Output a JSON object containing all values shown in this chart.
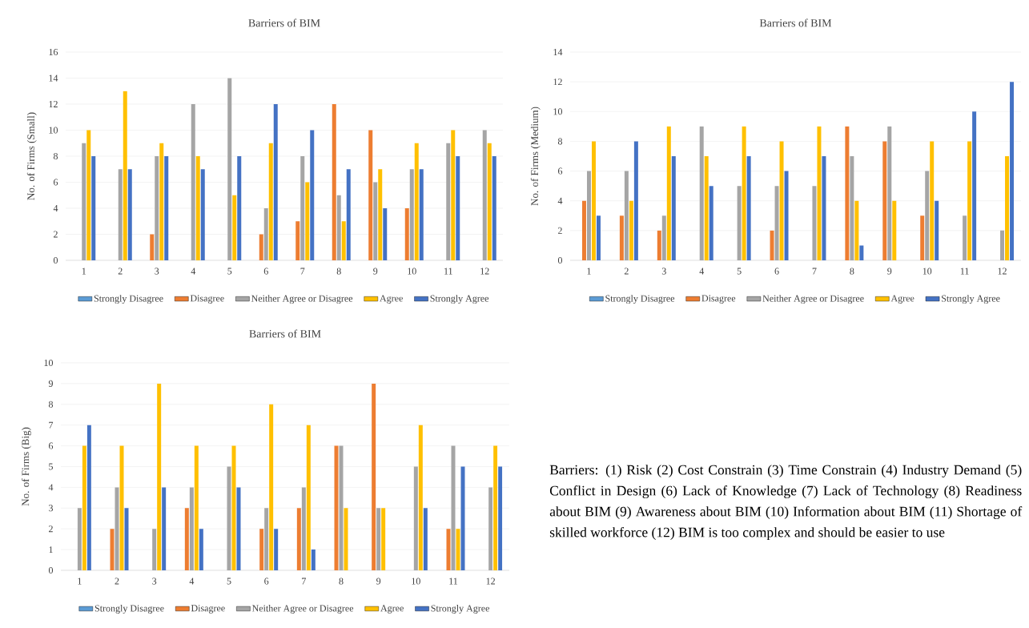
{
  "chart_data": [
    {
      "type": "bar",
      "title": "Barriers of BIM",
      "ylabel": "No. of Firms (Small)",
      "categories": [
        "1",
        "2",
        "3",
        "4",
        "5",
        "6",
        "7",
        "8",
        "9",
        "10",
        "11",
        "12"
      ],
      "ylim": [
        0,
        16
      ],
      "yticks": [
        0,
        2,
        4,
        6,
        8,
        10,
        12,
        14,
        16
      ],
      "grid": "y",
      "legend": "bottom",
      "series": [
        {
          "name": "Strongly Disagree",
          "color": "#5b9bd5",
          "values": [
            0,
            0,
            0,
            0,
            0,
            0,
            0,
            0,
            0,
            0,
            0,
            0
          ]
        },
        {
          "name": "Disagree",
          "color": "#ed7d31",
          "values": [
            0,
            0,
            2,
            0,
            0,
            2,
            3,
            12,
            10,
            4,
            0,
            0
          ]
        },
        {
          "name": "Neither Agree or Disagree",
          "color": "#a5a5a5",
          "values": [
            9,
            7,
            8,
            12,
            14,
            4,
            8,
            5,
            6,
            7,
            9,
            10
          ]
        },
        {
          "name": "Agree",
          "color": "#ffc000",
          "values": [
            10,
            13,
            9,
            8,
            5,
            9,
            6,
            3,
            7,
            9,
            10,
            9
          ]
        },
        {
          "name": "Strongly Agree",
          "color": "#4472c4",
          "values": [
            8,
            7,
            8,
            7,
            8,
            12,
            10,
            7,
            4,
            7,
            8,
            8
          ]
        }
      ]
    },
    {
      "type": "bar",
      "title": "Barriers of BIM",
      "ylabel": "No. of Firms (Medium)",
      "categories": [
        "1",
        "2",
        "3",
        "4",
        "5",
        "6",
        "7",
        "8",
        "9",
        "10",
        "11",
        "12"
      ],
      "ylim": [
        0,
        14
      ],
      "yticks": [
        0,
        2,
        4,
        6,
        8,
        10,
        12,
        14
      ],
      "grid": "y",
      "legend": "bottom",
      "series": [
        {
          "name": "Strongly Disagree",
          "color": "#5b9bd5",
          "values": [
            0,
            0,
            0,
            0,
            0,
            0,
            0,
            0,
            0,
            0,
            0,
            0
          ]
        },
        {
          "name": "Disagree",
          "color": "#ed7d31",
          "values": [
            4,
            3,
            2,
            0,
            0,
            2,
            0,
            9,
            8,
            3,
            0,
            0
          ]
        },
        {
          "name": "Neither Agree or Disagree",
          "color": "#a5a5a5",
          "values": [
            6,
            6,
            3,
            9,
            5,
            5,
            5,
            7,
            9,
            6,
            3,
            2
          ]
        },
        {
          "name": "Agree",
          "color": "#ffc000",
          "values": [
            8,
            4,
            9,
            7,
            9,
            8,
            9,
            4,
            4,
            8,
            8,
            7
          ]
        },
        {
          "name": "Strongly Agree",
          "color": "#4472c4",
          "values": [
            3,
            8,
            7,
            5,
            7,
            6,
            7,
            1,
            0,
            4,
            10,
            12
          ]
        }
      ]
    },
    {
      "type": "bar",
      "title": "Barriers of BIM",
      "ylabel": "No. of Firms (Big)",
      "categories": [
        "1",
        "2",
        "3",
        "4",
        "5",
        "6",
        "7",
        "8",
        "9",
        "10",
        "11",
        "12"
      ],
      "ylim": [
        0,
        10
      ],
      "yticks": [
        0,
        1,
        2,
        3,
        4,
        5,
        6,
        7,
        8,
        9,
        10
      ],
      "grid": "y",
      "legend": "bottom",
      "series": [
        {
          "name": "Strongly Disagree",
          "color": "#5b9bd5",
          "values": [
            0,
            0,
            0,
            0,
            0,
            0,
            0,
            0,
            0,
            0,
            0,
            0
          ]
        },
        {
          "name": "Disagree",
          "color": "#ed7d31",
          "values": [
            0,
            2,
            0,
            3,
            0,
            2,
            3,
            6,
            9,
            0,
            2,
            0
          ]
        },
        {
          "name": "Neither Agree or Disagree",
          "color": "#a5a5a5",
          "values": [
            3,
            4,
            2,
            4,
            5,
            3,
            4,
            6,
            3,
            5,
            6,
            4
          ]
        },
        {
          "name": "Agree",
          "color": "#ffc000",
          "values": [
            6,
            6,
            9,
            6,
            6,
            8,
            7,
            3,
            3,
            7,
            2,
            6
          ]
        },
        {
          "name": "Strongly Agree",
          "color": "#4472c4",
          "values": [
            7,
            3,
            4,
            2,
            4,
            2,
            1,
            0,
            0,
            3,
            5,
            5
          ]
        }
      ]
    },
    {
      "type": "other",
      "annotations": [
        "Barriers: (1) Risk (2) Cost Constrain (3) Time Constrain (4) Industry Demand (5) Conflict in Design (6) Lack of Knowledge (7) Lack of Technology (8) Readiness about BIM (9) Awareness about BIM (10) Information about BIM (11) Shortage of skilled workforce (12) BIM is too complex and should be easier to use"
      ]
    }
  ]
}
